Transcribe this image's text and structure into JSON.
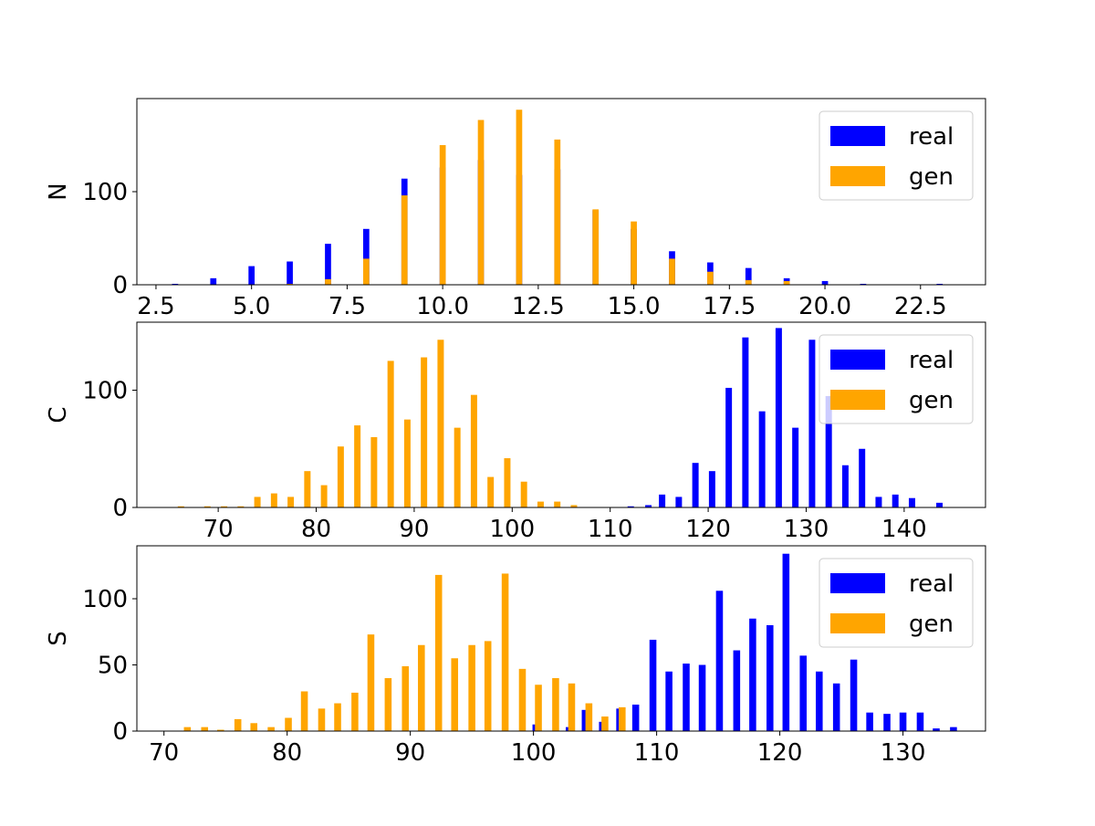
{
  "colors": {
    "real": "#0000ff",
    "gen": "#ffa500",
    "axis": "#000000",
    "background": "#ffffff"
  },
  "chart_data": [
    {
      "type": "bar",
      "ylabel": "N",
      "xlim": [
        2.0,
        24.2
      ],
      "ylim": [
        0,
        200
      ],
      "xticks": [
        2.5,
        5.0,
        7.5,
        10.0,
        12.5,
        15.0,
        17.5,
        20.0,
        22.5
      ],
      "xtick_labels": [
        "2.5",
        "5.0",
        "7.5",
        "10.0",
        "12.5",
        "15.0",
        "17.5",
        "20.0",
        "22.5"
      ],
      "yticks": [
        0,
        100
      ],
      "ytick_labels": [
        "0",
        "100"
      ],
      "bin_width": 0.16,
      "legend": "top-right",
      "series": [
        {
          "name": "real",
          "color": "#0000ff",
          "x": [
            3,
            4,
            5,
            6,
            7,
            8,
            9,
            10,
            11,
            12,
            13,
            14,
            15,
            16,
            17,
            18,
            19,
            20,
            21,
            23
          ],
          "values": [
            1,
            7,
            20,
            25,
            44,
            60,
            114,
            126,
            134,
            118,
            124,
            80,
            60,
            36,
            24,
            18,
            7,
            4,
            1,
            1
          ]
        },
        {
          "name": "gen",
          "color": "#ffa500",
          "x": [
            6,
            7,
            8,
            9,
            10,
            11,
            12,
            13,
            14,
            15,
            16,
            17,
            18,
            19
          ],
          "values": [
            1,
            6,
            28,
            96,
            150,
            177,
            188,
            156,
            81,
            68,
            28,
            14,
            5,
            4
          ]
        }
      ]
    },
    {
      "type": "bar",
      "ylabel": "C",
      "xlim": [
        61.7,
        148.3
      ],
      "ylim": [
        0,
        158
      ],
      "xticks": [
        70,
        80,
        90,
        100,
        110,
        120,
        130,
        140
      ],
      "xtick_labels": [
        "70",
        "80",
        "90",
        "100",
        "110",
        "120",
        "130",
        "140"
      ],
      "yticks": [
        0,
        100
      ],
      "ytick_labels": [
        "0",
        "100"
      ],
      "bin_width": 0.65,
      "legend": "top-right",
      "series": [
        {
          "name": "real",
          "color": "#0000ff",
          "x": [
            112.1,
            113.9,
            115.3,
            117.0,
            118.7,
            120.4,
            122.1,
            123.8,
            125.5,
            127.2,
            128.9,
            130.6,
            132.3,
            134.0,
            135.7,
            137.4,
            139.1,
            140.8,
            143.6
          ],
          "values": [
            1,
            2,
            11,
            9,
            38,
            31,
            102,
            145,
            82,
            153,
            68,
            143,
            95,
            36,
            50,
            9,
            11,
            8,
            4
          ]
        },
        {
          "name": "gen",
          "color": "#ffa500",
          "x": [
            66.2,
            68.9,
            70.6,
            72.3,
            74.0,
            75.7,
            77.4,
            79.1,
            80.8,
            82.5,
            84.2,
            85.9,
            87.6,
            89.3,
            91.0,
            92.7,
            94.4,
            96.1,
            97.8,
            99.5,
            101.2,
            102.9,
            104.6,
            106.3
          ],
          "values": [
            1,
            1,
            1,
            1,
            9,
            12,
            9,
            31,
            19,
            52,
            70,
            60,
            125,
            75,
            128,
            143,
            68,
            96,
            26,
            42,
            22,
            5,
            5,
            2
          ]
        }
      ]
    },
    {
      "type": "bar",
      "ylabel": "S",
      "xlim": [
        67.8,
        136.7
      ],
      "ylim": [
        0,
        140
      ],
      "xticks": [
        70,
        80,
        90,
        100,
        110,
        120,
        130
      ],
      "xtick_labels": [
        "70",
        "80",
        "90",
        "100",
        "110",
        "120",
        "130"
      ],
      "yticks": [
        0,
        50,
        100
      ],
      "ytick_labels": [
        "0",
        "50",
        "100"
      ],
      "bin_width": 0.56,
      "legend": "top-right",
      "series": [
        {
          "name": "real",
          "color": "#0000ff",
          "x": [
            100.2,
            102.9,
            104.2,
            105.6,
            107.0,
            108.3,
            109.7,
            111.0,
            112.4,
            113.7,
            115.1,
            116.5,
            117.8,
            119.2,
            120.5,
            121.9,
            123.2,
            124.6,
            126.0,
            127.3,
            128.7,
            130.0,
            131.4,
            132.7,
            134.1
          ],
          "values": [
            5,
            3,
            16,
            7,
            17,
            20,
            69,
            45,
            51,
            50,
            106,
            61,
            85,
            80,
            134,
            57,
            45,
            36,
            54,
            14,
            13,
            14,
            14,
            2,
            3
          ]
        },
        {
          "name": "gen",
          "color": "#ffa500",
          "x": [
            71.9,
            73.3,
            74.6,
            76.0,
            77.3,
            78.7,
            80.1,
            81.4,
            82.8,
            84.1,
            85.5,
            86.8,
            88.2,
            89.6,
            90.9,
            92.3,
            93.6,
            95.0,
            96.3,
            97.7,
            99.1,
            100.4,
            101.8,
            103.1,
            104.5,
            105.8,
            107.2
          ],
          "values": [
            3,
            3,
            1,
            9,
            6,
            3,
            10,
            30,
            17,
            21,
            29,
            73,
            40,
            49,
            65,
            118,
            55,
            65,
            68,
            119,
            47,
            35,
            40,
            36,
            21,
            11,
            18
          ]
        }
      ]
    }
  ]
}
